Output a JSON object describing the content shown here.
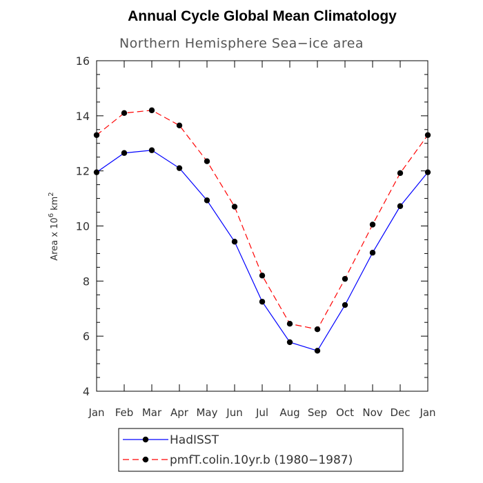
{
  "chart_data": {
    "type": "line",
    "title": "Annual Cycle Global Mean Climatology",
    "subtitle": "Northern Hemisphere Sea−ice area",
    "ylabel": "Area x 10",
    "ylabel_exponent": "6",
    "ylabel_unit": "km",
    "ylabel_unit_exponent": "2",
    "categories": [
      "Jan",
      "Feb",
      "Mar",
      "Apr",
      "May",
      "Jun",
      "Jul",
      "Aug",
      "Sep",
      "Oct",
      "Nov",
      "Dec",
      "Jan"
    ],
    "ylim": [
      4,
      16
    ],
    "yticks": [
      4,
      6,
      8,
      10,
      12,
      14,
      16
    ],
    "grid": false,
    "legend_position": "bottom",
    "series": [
      {
        "name": "HadISST",
        "color": "#0000ff",
        "dash": "solid",
        "values": [
          11.95,
          12.65,
          12.75,
          12.1,
          10.93,
          9.43,
          7.25,
          5.78,
          5.47,
          7.13,
          9.03,
          10.72,
          11.95
        ]
      },
      {
        "name": "pmfT.colin.10yr.b (1980−1987)",
        "color": "#ff0000",
        "dash": "dashed",
        "values": [
          13.3,
          14.1,
          14.2,
          13.65,
          12.35,
          10.7,
          8.2,
          6.45,
          6.25,
          8.08,
          10.05,
          11.92,
          13.3
        ]
      }
    ]
  }
}
